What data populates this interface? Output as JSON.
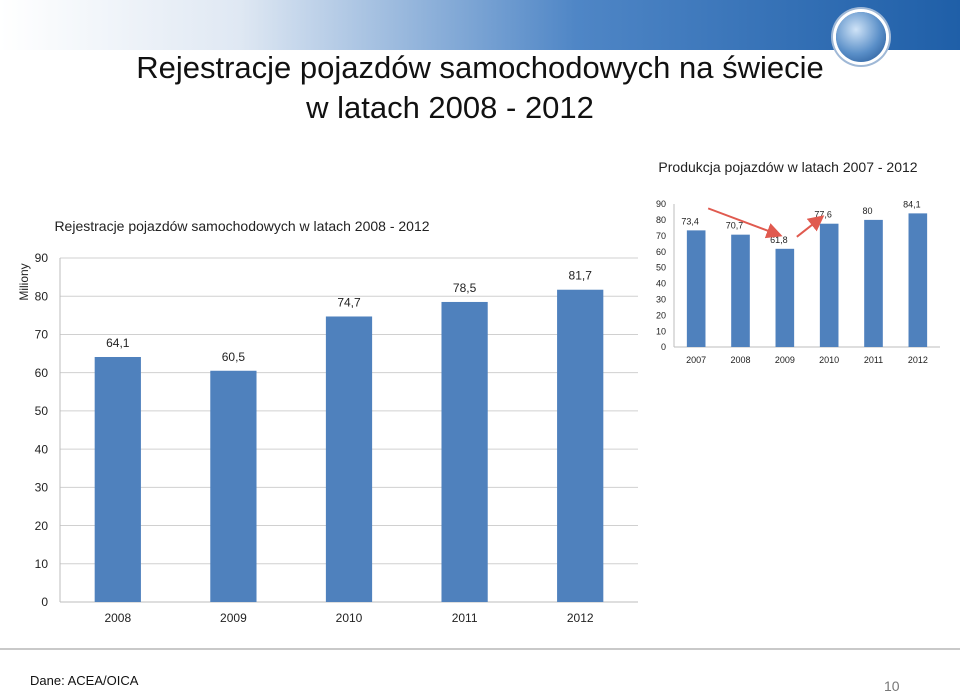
{
  "slide": {
    "title_line1": "Rejestracje pojazdów samochodowych na świecie",
    "title_line2": "w latach 2008 - 2012",
    "source": "Dane: ACEA/OICA",
    "page_number": "10",
    "logo": "car-globe-logo"
  },
  "chart_data": [
    {
      "type": "bar",
      "title": "Rejestracje pojazdów samochodowych w latach 2008 - 2012",
      "ylabel": "Miliony",
      "categories": [
        "2008",
        "2009",
        "2010",
        "2011",
        "2012"
      ],
      "values": [
        64.1,
        60.5,
        74.7,
        78.5,
        81.7
      ],
      "value_labels": [
        "64,1",
        "60,5",
        "74,7",
        "78,5",
        "81,7"
      ],
      "ylim": [
        0,
        90
      ],
      "yticks": [
        "0",
        "10",
        "20",
        "30",
        "40",
        "50",
        "60",
        "70",
        "80",
        "90"
      ],
      "grid": true,
      "bar_color": "#4f81bd"
    },
    {
      "type": "bar",
      "title": "Produkcja pojazdów w latach 2007 - 2012",
      "categories": [
        "2007",
        "2008",
        "2009",
        "2010",
        "2011",
        "2012"
      ],
      "values": [
        73.4,
        70.7,
        61.8,
        77.6,
        80,
        84.1
      ],
      "value_labels": [
        "73,4",
        "70,7",
        "61,8",
        "77,6",
        "80",
        "84,1"
      ],
      "ylim": [
        0,
        90
      ],
      "yticks": [
        "0",
        "10",
        "20",
        "30",
        "40",
        "50",
        "60",
        "70",
        "80",
        "90"
      ],
      "grid": false,
      "bar_color": "#4f81bd",
      "trend_arrow_color": "#e05a4f"
    }
  ]
}
